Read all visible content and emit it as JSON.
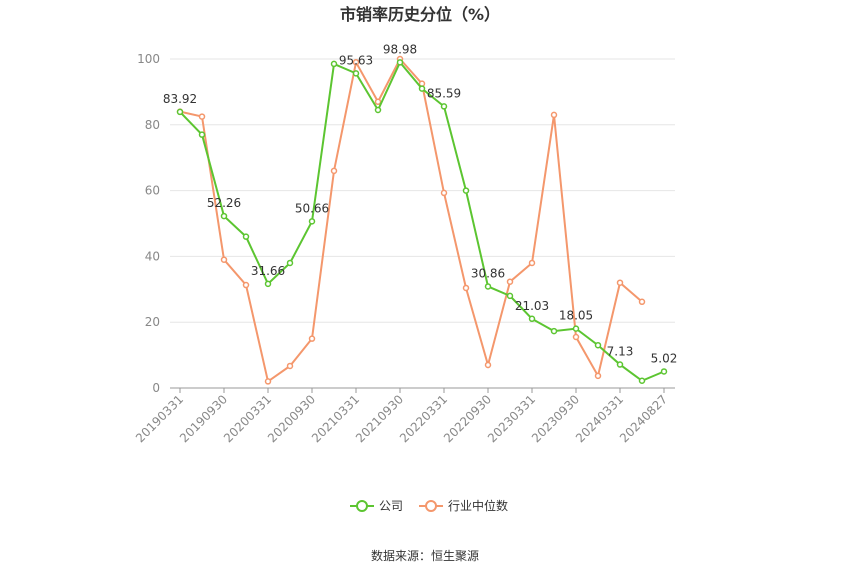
{
  "chart_data": {
    "type": "line",
    "title": "市销率历史分位（%）",
    "source": "数据来源：恒生聚源",
    "categories": [
      "20190331",
      null,
      "20190930",
      null,
      "20200331",
      null,
      "20200930",
      null,
      "20210331",
      null,
      "20210930",
      null,
      "20220331",
      null,
      "20220930",
      null,
      "20230331",
      null,
      "20230930",
      null,
      "20240331",
      null,
      "20240827"
    ],
    "series": [
      {
        "name": "公司",
        "color": "#5cc531",
        "values": [
          83.92,
          77,
          52.26,
          46,
          31.66,
          38,
          50.66,
          98.5,
          95.63,
          84.5,
          98.98,
          91,
          85.59,
          60,
          30.86,
          28,
          21.03,
          17.3,
          18.05,
          13,
          7.13,
          2.2,
          5.02
        ],
        "value_labels": [
          "83.92",
          null,
          "52.26",
          null,
          "31.66",
          null,
          "50.66",
          null,
          "95.63",
          null,
          "98.98",
          null,
          "85.59",
          null,
          "30.86",
          null,
          "21.03",
          null,
          "18.05",
          null,
          "7.13",
          null,
          "5.02"
        ]
      },
      {
        "name": "行业中位数",
        "color": "#f4976c",
        "values": [
          84,
          82.5,
          39,
          31.3,
          2,
          6.7,
          15,
          66,
          99,
          87,
          100,
          92.5,
          59.3,
          30.4,
          7,
          32.3,
          38,
          83,
          15.5,
          3.7,
          32,
          26.2,
          null
        ]
      }
    ],
    "ylim": [
      0,
      100
    ],
    "yticks": [
      0,
      20,
      40,
      60,
      80,
      100
    ],
    "grid": true,
    "legend": "bottom"
  }
}
